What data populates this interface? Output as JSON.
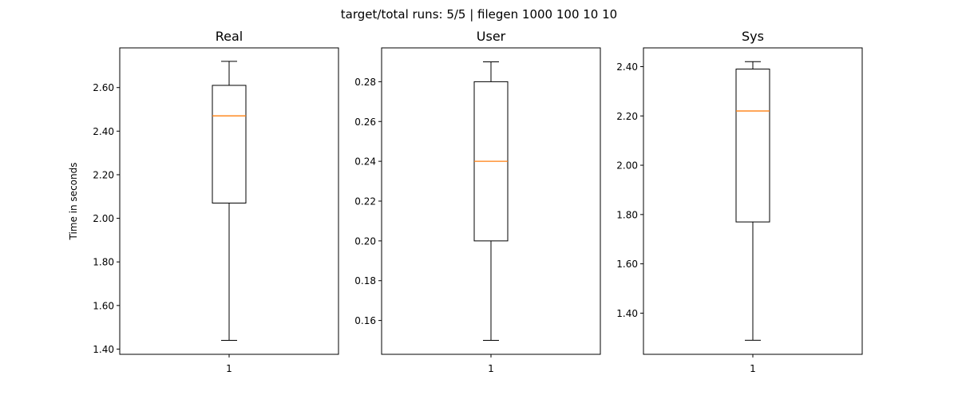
{
  "suptitle": "target/total runs: 5/5 | filegen 1000 100 10 10",
  "colors": {
    "box": "#000000",
    "median": "#ff7f0e",
    "axes": "#000000",
    "background": "#ffffff"
  },
  "chart_data": [
    {
      "type": "box",
      "title": "Real",
      "ylabel": "Time in seconds",
      "xlabel": "",
      "categories": [
        "1"
      ],
      "yticks": [
        1.4,
        1.6,
        1.8,
        2.0,
        2.2,
        2.4,
        2.6
      ],
      "ytick_labels": [
        "1.40",
        "1.60",
        "1.80",
        "2.00",
        "2.20",
        "2.40",
        "2.60"
      ],
      "ylim": [
        1.376,
        2.782
      ],
      "box": {
        "whisker_low": 1.44,
        "q1": 2.07,
        "median": 2.47,
        "q3": 2.61,
        "whisker_high": 2.72
      }
    },
    {
      "type": "box",
      "title": "User",
      "ylabel": "",
      "xlabel": "",
      "categories": [
        "1"
      ],
      "yticks": [
        0.16,
        0.18,
        0.2,
        0.22,
        0.24,
        0.26,
        0.28
      ],
      "ytick_labels": [
        "0.16",
        "0.18",
        "0.20",
        "0.22",
        "0.24",
        "0.26",
        "0.28"
      ],
      "ylim": [
        0.143,
        0.297
      ],
      "box": {
        "whisker_low": 0.15,
        "q1": 0.2,
        "median": 0.24,
        "q3": 0.28,
        "whisker_high": 0.29
      }
    },
    {
      "type": "box",
      "title": "Sys",
      "ylabel": "",
      "xlabel": "",
      "categories": [
        "1"
      ],
      "yticks": [
        1.4,
        1.6,
        1.8,
        2.0,
        2.2,
        2.4
      ],
      "ytick_labels": [
        "1.40",
        "1.60",
        "1.80",
        "2.00",
        "2.20",
        "2.40"
      ],
      "ylim": [
        1.233,
        2.476
      ],
      "box": {
        "whisker_low": 1.29,
        "q1": 1.77,
        "median": 2.22,
        "q3": 2.39,
        "whisker_high": 2.42
      }
    }
  ]
}
